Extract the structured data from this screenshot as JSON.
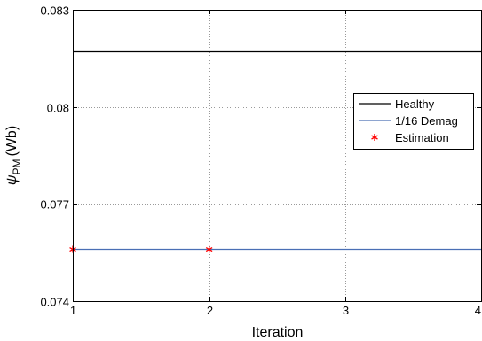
{
  "chart_data": {
    "type": "line",
    "xlabel": "Iteration",
    "ylabel": {
      "symbol": "ψ",
      "subscript": "PM",
      "unit": "(Wb)"
    },
    "xlim": [
      1,
      4
    ],
    "ylim": [
      0.074,
      0.083
    ],
    "x_ticks": [
      1,
      2,
      3,
      4
    ],
    "x_tick_labels": [
      "1",
      "2",
      "3",
      "4"
    ],
    "y_ticks": [
      0.074,
      0.077,
      0.08,
      0.083
    ],
    "y_tick_labels": [
      "0.074",
      "0.077",
      "0.08",
      "0.083"
    ],
    "grid": true,
    "legend_position": "right",
    "series": [
      {
        "name": "Healthy",
        "kind": "line",
        "color": "#000000",
        "x": [
          1,
          4
        ],
        "y": [
          0.0817,
          0.0817
        ]
      },
      {
        "name": "1/16 Demag",
        "kind": "line",
        "color": "#4a6fb5",
        "x": [
          1,
          4
        ],
        "y": [
          0.0756,
          0.0756
        ]
      },
      {
        "name": "Estimation",
        "kind": "marker",
        "marker": "asterisk",
        "color": "#ff0000",
        "x": [
          1,
          2
        ],
        "y": [
          0.0756,
          0.0756
        ]
      }
    ]
  }
}
